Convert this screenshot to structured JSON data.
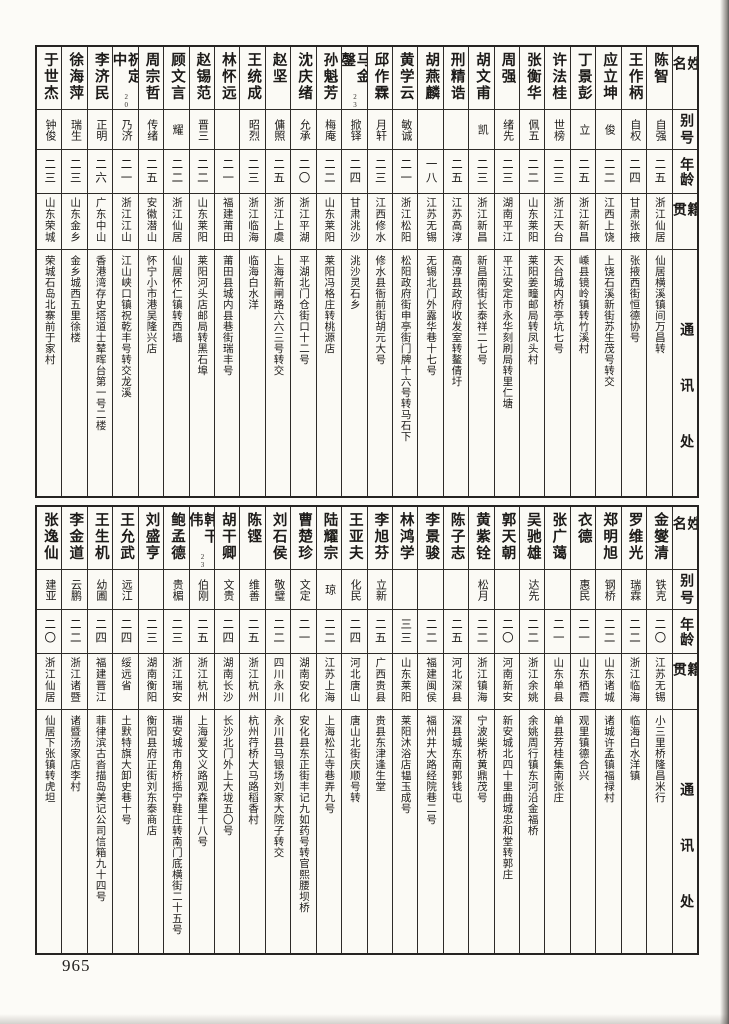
{
  "page_number": "965",
  "header": {
    "name": "姓名",
    "alias": "别号",
    "age": "年龄",
    "native_place": "籍贯",
    "address": "通讯处"
  },
  "tables": [
    {
      "entries": [
        {
          "name": "陈智",
          "note": "",
          "alias": "自强",
          "age": "二五",
          "place": "浙江仙居",
          "address": "仙居横溪镇间万昌转"
        },
        {
          "name": "王作柄",
          "note": "",
          "alias": "自权",
          "age": "二四",
          "place": "甘肃张掖",
          "address": "张掖西街恒德协号"
        },
        {
          "name": "应立坤",
          "note": "",
          "alias": "俊",
          "age": "二二",
          "place": "江西上饶",
          "address": "上饶石溪新街苏生茂号转交"
        },
        {
          "name": "丁景彭",
          "note": "",
          "alias": "立",
          "age": "二五",
          "place": "浙江新昌",
          "address": "嵊县镜岭镇转竹溪村"
        },
        {
          "name": "许法桂",
          "note": "",
          "alias": "世榜",
          "age": "二三",
          "place": "浙江天台",
          "address": "天台城内桥亭坑七号"
        },
        {
          "name": "张衡华",
          "note": "",
          "alias": "佩五",
          "age": "二二",
          "place": "山东莱阳",
          "address": "莱阳姜疃邮局转凤头村"
        },
        {
          "name": "周强",
          "note": "",
          "alias": "绪先",
          "age": "二三",
          "place": "湖南平江",
          "address": "平江安定市永华刻刷局转里仁塘"
        },
        {
          "name": "胡文甫",
          "note": "",
          "alias": "凯",
          "age": "二三",
          "place": "浙江新昌",
          "address": "新昌南街长泰祥二七号"
        },
        {
          "name": "刑精诰",
          "note": "",
          "alias": "",
          "age": "二五",
          "place": "江苏高淳",
          "address": "高淳县政府收发室转鳌倩圩"
        },
        {
          "name": "胡燕麟",
          "note": "",
          "alias": "",
          "age": "一八",
          "place": "江苏无锡",
          "address": "无锡北门外露华巷十七号"
        },
        {
          "name": "黄学云",
          "note": "",
          "alias": "敏诚",
          "age": "二一",
          "place": "浙江松阳",
          "address": "松阳政府街申亭街门牌十六号转马石下"
        },
        {
          "name": "邱作霖",
          "note": "",
          "alias": "月轩",
          "age": "二三",
          "place": "江西修水",
          "address": "修水县衙前街胡元大号"
        },
        {
          "name": "马金鏧",
          "note": "23",
          "alias": "掀铎",
          "age": "二四",
          "place": "甘肃洮沙",
          "address": "洮沙灵石乡"
        },
        {
          "name": "孙魁芳",
          "note": "",
          "alias": "梅庵",
          "age": "二二",
          "place": "山东莱阳",
          "address": "莱阳冯格庄转桃源店"
        },
        {
          "name": "沈庆绪",
          "note": "",
          "alias": "允承",
          "age": "二〇",
          "place": "浙江平湖",
          "address": "平湖北门仓街口十二号"
        },
        {
          "name": "赵坚",
          "note": "",
          "alias": "傭照",
          "age": "二五",
          "place": "浙江上虞",
          "address": "上海新闸路六六三号转交"
        },
        {
          "name": "王统成",
          "note": "",
          "alias": "昭烈",
          "age": "二三",
          "place": "浙江临海",
          "address": "临海白水洋"
        },
        {
          "name": "林怀远",
          "note": "",
          "alias": "",
          "age": "二一",
          "place": "福建莆田",
          "address": "莆田县城内县巷街瑞丰号"
        },
        {
          "name": "赵锡范",
          "note": "",
          "alias": "晋三",
          "age": "二二",
          "place": "山东莱阳",
          "address": "莱阳河头店邮局转黑石埠"
        },
        {
          "name": "顾文言",
          "note": "",
          "alias": "耀",
          "age": "二二",
          "place": "浙江仙居",
          "address": "仙居怀仁镇转西墙"
        },
        {
          "name": "周宗哲",
          "note": "",
          "alias": "传绪",
          "age": "二五",
          "place": "安徽潜山",
          "address": "怀宁小市港吴隆兴店"
        },
        {
          "name": "祝定中",
          "note": "20",
          "alias": "乃济",
          "age": "二一",
          "place": "浙江江山",
          "address": "江山峡口镇祝乾丰号转交龙溪"
        },
        {
          "name": "李济民",
          "note": "",
          "alias": "正明",
          "age": "二六",
          "place": "广东中山",
          "address": "香港湾存史塔道士辇晖台第一号二楼"
        },
        {
          "name": "徐海萍",
          "note": "",
          "alias": "瑞生",
          "age": "二三",
          "place": "山东金乡",
          "address": "金乡城西五里徐楼"
        },
        {
          "name": "于世杰",
          "note": "",
          "alias": "钟俊",
          "age": "二三",
          "place": "山东荣城",
          "address": "荣城石岛北寨前于家村"
        }
      ]
    },
    {
      "entries": [
        {
          "name": "金燮清",
          "note": "",
          "alias": "铁克",
          "age": "二〇",
          "place": "江苏无锡",
          "address": "小三里桥隆昌米行"
        },
        {
          "name": "罗维光",
          "note": "",
          "alias": "瑞霖",
          "age": "二二",
          "place": "浙江临海",
          "address": "临海白水洋镇"
        },
        {
          "name": "郑明旭",
          "note": "",
          "alias": "钢桥",
          "age": "二二",
          "place": "山东诸城",
          "address": "诸城许孟镇福禄村"
        },
        {
          "name": "衣德",
          "note": "",
          "alias": "惠民",
          "age": "二一",
          "place": "山东栖霞",
          "address": "观里镇德合兴"
        },
        {
          "name": "张广蔼",
          "note": "",
          "alias": "",
          "age": "二一",
          "place": "山东单县",
          "address": "单县芳桂集南张庄"
        },
        {
          "name": "吴驰雄",
          "note": "",
          "alias": "达先",
          "age": "二二",
          "place": "浙江余姚",
          "address": "余姚周行镇东河沿金福桥"
        },
        {
          "name": "郭天朝",
          "note": "",
          "alias": "",
          "age": "二〇",
          "place": "河南新安",
          "address": "新安城北四十里曲城忠和堂转郭庄"
        },
        {
          "name": "黄紫铨",
          "note": "",
          "alias": "松月",
          "age": "二二",
          "place": "浙江镇海",
          "address": "宁波柴桥黄鼎茂号"
        },
        {
          "name": "陈子志",
          "note": "",
          "alias": "",
          "age": "二五",
          "place": "河北深县",
          "address": "深县城东南郭钱屯"
        },
        {
          "name": "李景骏",
          "note": "",
          "alias": "",
          "age": "二二",
          "place": "福建闽侯",
          "address": "福州井大路经院巷二号"
        },
        {
          "name": "林鸿学",
          "note": "",
          "alias": "",
          "age": "三三",
          "place": "山东莱阳",
          "address": "莱阳沐浴店韫玉成号"
        },
        {
          "name": "李旭芬",
          "note": "",
          "alias": "立新",
          "age": "二五",
          "place": "广西贵县",
          "address": "贵县东津逢生堂"
        },
        {
          "name": "王亚夫",
          "note": "",
          "alias": "化民",
          "age": "二四",
          "place": "河北唐山",
          "address": "唐山北街庆顺号转"
        },
        {
          "name": "陆耀宗",
          "note": "",
          "alias": "琼",
          "age": "二二",
          "place": "江苏上海",
          "address": "上海松江寺巷弄九号"
        },
        {
          "name": "曹楚珍",
          "note": "",
          "alias": "文定",
          "age": "二一",
          "place": "湖南安化",
          "address": "安化县东正街丰记九如药号转官熙腰坝桥"
        },
        {
          "name": "刘石侯",
          "note": "",
          "alias": "敬璧",
          "age": "二二",
          "place": "四川永川",
          "address": "永川县马银场刘家大院子转交"
        },
        {
          "name": "陈铿",
          "note": "",
          "alias": "维善",
          "age": "二五",
          "place": "浙江杭州",
          "address": "杭州荇桥大马路稻香村"
        },
        {
          "name": "胡干卿",
          "note": "",
          "alias": "文贵",
          "age": "二四",
          "place": "湖南长沙",
          "address": "长沙北门外上大垅五〇号"
        },
        {
          "name": "韩干伟",
          "note": "23",
          "alias": "伯刚",
          "age": "二五",
          "place": "浙江杭州",
          "address": "上海爱文义路观森里十八号"
        },
        {
          "name": "鲍孟德",
          "note": "",
          "alias": "贵楣",
          "age": "二三",
          "place": "浙江瑞安",
          "address": "瑞安城市角桥摇宁鞋庄转南门底横街二十五号"
        },
        {
          "name": "刘盛亨",
          "note": "",
          "alias": "",
          "age": "二三",
          "place": "湖南衡阳",
          "address": "衡阳县府正街刘东泰商店"
        },
        {
          "name": "王允武",
          "note": "",
          "alias": "远江",
          "age": "二四",
          "place": "绥远省",
          "address": "土默特旗大卸史巷十号"
        },
        {
          "name": "王生机",
          "note": "",
          "alias": "幼圃",
          "age": "二四",
          "place": "福建晋江",
          "address": "菲律滨古沓描岛美记公司信箱九十四号"
        },
        {
          "name": "李金道",
          "note": "",
          "alias": "云鹏",
          "age": "二二",
          "place": "浙江诸暨",
          "address": "诸暨汤家店李村"
        },
        {
          "name": "张逸仙",
          "note": "",
          "alias": "建亚",
          "age": "二〇",
          "place": "浙江仙居",
          "address": "仙居下张镇转虎坦"
        }
      ]
    }
  ]
}
